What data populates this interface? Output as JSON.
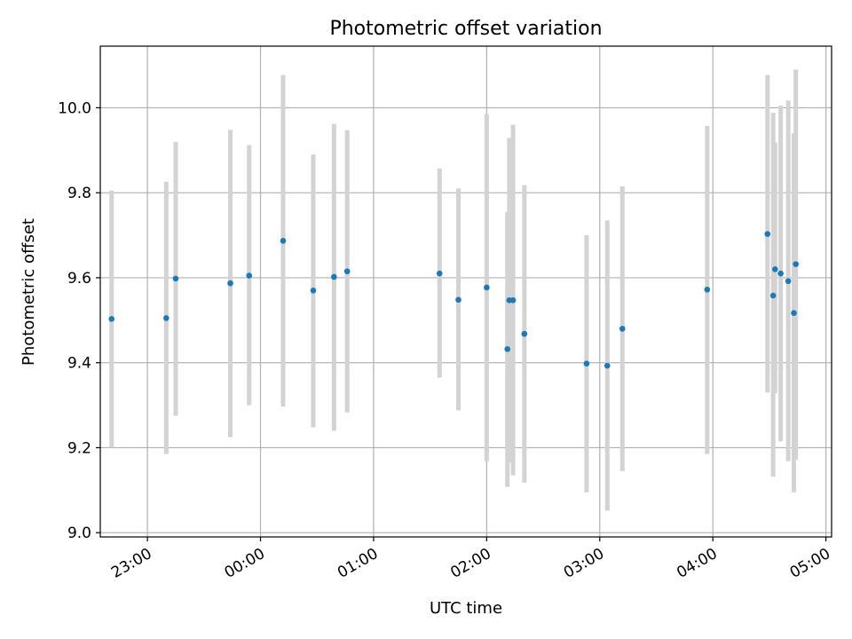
{
  "chart_data": {
    "type": "scatter",
    "title": "Photometric offset variation",
    "xlabel": "UTC time",
    "ylabel": "Photometric offset",
    "x_axis": {
      "kind": "time",
      "range": [
        "22:35",
        "05:03"
      ],
      "ticks": [
        {
          "time": "23:00",
          "label": "23:00"
        },
        {
          "time": "00:00",
          "label": "00:00"
        },
        {
          "time": "01:00",
          "label": "01:00"
        },
        {
          "time": "02:00",
          "label": "02:00"
        },
        {
          "time": "03:00",
          "label": "03:00"
        },
        {
          "time": "04:00",
          "label": "04:00"
        },
        {
          "time": "05:00",
          "label": "05:00"
        }
      ]
    },
    "y_axis": {
      "range": [
        8.99,
        10.145
      ],
      "ticks": [
        {
          "value": 9.0,
          "label": "9.0"
        },
        {
          "value": 9.2,
          "label": "9.2"
        },
        {
          "value": 9.4,
          "label": "9.4"
        },
        {
          "value": 9.6,
          "label": "9.6"
        },
        {
          "value": 9.8,
          "label": "9.8"
        },
        {
          "value": 10.0,
          "label": "10.0"
        }
      ]
    },
    "grid": true,
    "point_color": "#1f77b4",
    "error_bar_color": "#d3d3d3",
    "points": [
      {
        "time": "22:41",
        "y": 9.503,
        "low": 9.2,
        "high": 9.805
      },
      {
        "time": "23:10",
        "y": 9.505,
        "low": 9.185,
        "high": 9.826
      },
      {
        "time": "23:15",
        "y": 9.598,
        "low": 9.275,
        "high": 9.92
      },
      {
        "time": "23:44",
        "y": 9.587,
        "low": 9.225,
        "high": 9.948
      },
      {
        "time": "23:54",
        "y": 9.605,
        "low": 9.3,
        "high": 9.912
      },
      {
        "time": "00:12",
        "y": 9.687,
        "low": 9.297,
        "high": 10.077
      },
      {
        "time": "00:28",
        "y": 9.57,
        "low": 9.248,
        "high": 9.89
      },
      {
        "time": "00:39",
        "y": 9.602,
        "low": 9.24,
        "high": 9.962
      },
      {
        "time": "00:46",
        "y": 9.615,
        "low": 9.283,
        "high": 9.947
      },
      {
        "time": "01:35",
        "y": 9.61,
        "low": 9.365,
        "high": 9.857
      },
      {
        "time": "01:45",
        "y": 9.548,
        "low": 9.288,
        "high": 9.81
      },
      {
        "time": "02:00",
        "y": 9.577,
        "low": 9.168,
        "high": 9.985
      },
      {
        "time": "02:11",
        "y": 9.432,
        "low": 9.108,
        "high": 9.755
      },
      {
        "time": "02:12",
        "y": 9.547,
        "low": 9.165,
        "high": 9.929
      },
      {
        "time": "02:14",
        "y": 9.547,
        "low": 9.135,
        "high": 9.96
      },
      {
        "time": "02:20",
        "y": 9.468,
        "low": 9.118,
        "high": 9.818
      },
      {
        "time": "02:53",
        "y": 9.398,
        "low": 9.095,
        "high": 9.7
      },
      {
        "time": "03:04",
        "y": 9.393,
        "low": 9.052,
        "high": 9.735
      },
      {
        "time": "03:12",
        "y": 9.48,
        "low": 9.145,
        "high": 9.815
      },
      {
        "time": "03:57",
        "y": 9.572,
        "low": 9.185,
        "high": 9.957
      },
      {
        "time": "04:29",
        "y": 9.703,
        "low": 9.33,
        "high": 10.077
      },
      {
        "time": "04:32",
        "y": 9.558,
        "low": 9.132,
        "high": 9.988
      },
      {
        "time": "04:33",
        "y": 9.62,
        "low": 9.328,
        "high": 9.918
      },
      {
        "time": "04:36",
        "y": 9.61,
        "low": 9.215,
        "high": 10.005
      },
      {
        "time": "04:40",
        "y": 9.592,
        "low": 9.168,
        "high": 10.017
      },
      {
        "time": "04:43",
        "y": 9.517,
        "low": 9.095,
        "high": 9.94
      },
      {
        "time": "04:44",
        "y": 9.632,
        "low": 9.172,
        "high": 10.09
      }
    ]
  }
}
